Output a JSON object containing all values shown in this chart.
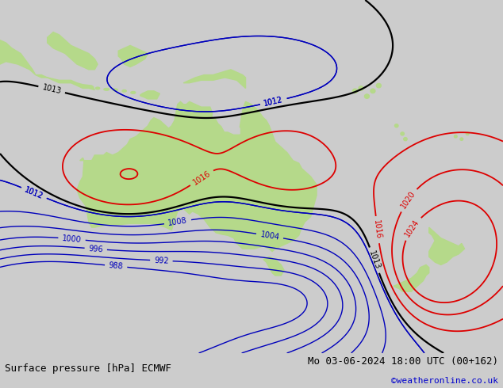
{
  "title_left": "Surface pressure [hPa] ECMWF",
  "title_right": "Mo 03-06-2024 18:00 UTC (00+162)",
  "copyright": "©weatheronline.co.uk",
  "bg_color": "#cccccc",
  "land_color": "#b5d98a",
  "sea_color": "#cccccc",
  "bottom_bar_color": "#dddddd",
  "contour_red_color": "#dd0000",
  "contour_blue_color": "#0000bb",
  "contour_black_color": "#000000",
  "font_size_labels": 7,
  "font_size_bottom": 9,
  "font_size_copyright": 8,
  "xlim": [
    100,
    185
  ],
  "ylim": [
    -58,
    8
  ]
}
